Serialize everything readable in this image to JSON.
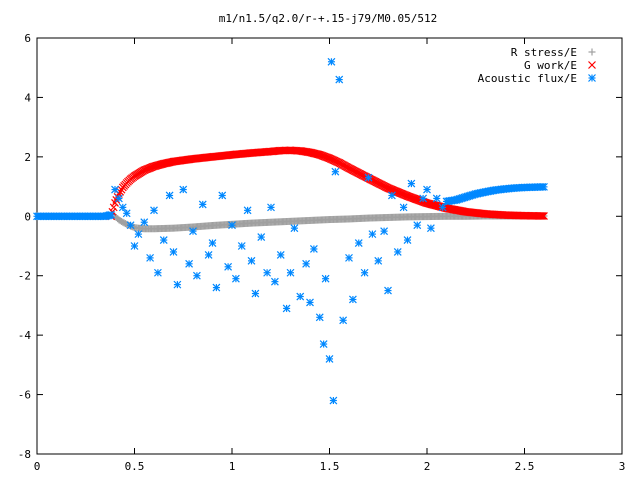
{
  "chart_data": {
    "type": "scatter",
    "title": "m1/n1.5/q2.0/r-+.15-j79/M0.05/512",
    "xlabel": "",
    "ylabel": "",
    "xlim": [
      0,
      3
    ],
    "ylim": [
      -8,
      6
    ],
    "x_ticks": [
      "0",
      "0.5",
      "1",
      "1.5",
      "2",
      "2.5",
      "3"
    ],
    "y_ticks": [
      "-8",
      "-6",
      "-4",
      "-2",
      "0",
      "2",
      "4",
      "6"
    ],
    "grid": false,
    "legend_position": "top-right",
    "series": [
      {
        "name": "R stress/E",
        "marker": "plus",
        "color": "#a0a0a0",
        "x": [
          0.4,
          0.42,
          0.44,
          0.46,
          0.48,
          0.5,
          0.52,
          0.55,
          0.6,
          0.7,
          0.8,
          0.9,
          1.0,
          1.1,
          1.2,
          1.3,
          1.4,
          1.5,
          1.6,
          1.7,
          1.8,
          1.9,
          2.0,
          2.1,
          2.2,
          2.3,
          2.4,
          2.5,
          2.6
        ],
        "y": [
          0.0,
          -0.12,
          -0.2,
          -0.27,
          -0.33,
          -0.38,
          -0.4,
          -0.42,
          -0.42,
          -0.4,
          -0.36,
          -0.31,
          -0.27,
          -0.23,
          -0.2,
          -0.17,
          -0.14,
          -0.11,
          -0.09,
          -0.06,
          -0.04,
          -0.02,
          -0.01,
          0.0,
          0.0,
          0.01,
          0.01,
          0.01,
          0.01
        ]
      },
      {
        "name": "G work/E",
        "marker": "cross",
        "color": "#ff0000",
        "x": [
          0.38,
          0.4,
          0.42,
          0.44,
          0.46,
          0.48,
          0.5,
          0.55,
          0.6,
          0.65,
          0.7,
          0.8,
          0.9,
          1.0,
          1.1,
          1.2,
          1.25,
          1.3,
          1.35,
          1.4,
          1.45,
          1.5,
          1.55,
          1.6,
          1.7,
          1.8,
          1.9,
          2.0,
          2.1,
          2.2,
          2.3,
          2.4,
          2.5,
          2.6
        ],
        "y": [
          0.0,
          0.45,
          0.75,
          0.97,
          1.12,
          1.25,
          1.35,
          1.55,
          1.68,
          1.77,
          1.84,
          1.93,
          2.0,
          2.07,
          2.13,
          2.18,
          2.21,
          2.22,
          2.2,
          2.15,
          2.07,
          1.95,
          1.8,
          1.62,
          1.28,
          0.95,
          0.68,
          0.44,
          0.27,
          0.15,
          0.08,
          0.04,
          0.02,
          0.01
        ]
      },
      {
        "name": "Acoustic flux/E",
        "marker": "star",
        "color": "#0088ff",
        "x": [
          0.0,
          0.05,
          0.1,
          0.15,
          0.2,
          0.25,
          0.3,
          0.35,
          0.38,
          0.4,
          0.42,
          0.44,
          0.46,
          0.48,
          0.5,
          0.52,
          0.55,
          0.58,
          0.6,
          0.62,
          0.65,
          0.68,
          0.7,
          0.72,
          0.75,
          0.78,
          0.8,
          0.82,
          0.85,
          0.88,
          0.9,
          0.92,
          0.95,
          0.98,
          1.0,
          1.02,
          1.05,
          1.08,
          1.1,
          1.12,
          1.15,
          1.18,
          1.2,
          1.22,
          1.25,
          1.28,
          1.3,
          1.32,
          1.35,
          1.38,
          1.4,
          1.42,
          1.45,
          1.47,
          1.48,
          1.5,
          1.51,
          1.52,
          1.53,
          1.55,
          1.57,
          1.6,
          1.62,
          1.65,
          1.68,
          1.7,
          1.72,
          1.75,
          1.78,
          1.8,
          1.82,
          1.85,
          1.88,
          1.9,
          1.92,
          1.95,
          1.98,
          2.0,
          2.02,
          2.05,
          2.08,
          2.1,
          2.15,
          2.2,
          2.25,
          2.3,
          2.35,
          2.4,
          2.45,
          2.5,
          2.55,
          2.6
        ],
        "y": [
          0.0,
          0.0,
          0.0,
          0.0,
          0.0,
          0.0,
          0.0,
          0.0,
          0.05,
          0.9,
          0.6,
          0.3,
          0.1,
          -0.3,
          -1.0,
          -0.6,
          -0.2,
          -1.4,
          0.2,
          -1.9,
          -0.8,
          0.7,
          -1.2,
          -2.3,
          0.9,
          -1.6,
          -0.5,
          -2.0,
          0.4,
          -1.3,
          -0.9,
          -2.4,
          0.7,
          -1.7,
          -0.3,
          -2.1,
          -1.0,
          0.2,
          -1.5,
          -2.6,
          -0.7,
          -1.9,
          0.3,
          -2.2,
          -1.3,
          -3.1,
          -1.9,
          -0.4,
          -2.7,
          -1.6,
          -2.9,
          -1.1,
          -3.4,
          -4.3,
          -2.1,
          -4.8,
          5.2,
          -6.2,
          1.5,
          4.6,
          -3.5,
          -1.4,
          -2.8,
          -0.9,
          -1.9,
          1.3,
          -0.6,
          -1.5,
          -0.5,
          -2.5,
          0.7,
          -1.2,
          0.3,
          -0.8,
          1.1,
          -0.3,
          0.6,
          0.9,
          -0.4,
          0.6,
          0.3,
          0.5,
          0.55,
          0.65,
          0.75,
          0.82,
          0.88,
          0.92,
          0.95,
          0.97,
          0.98,
          0.99
        ]
      }
    ]
  }
}
